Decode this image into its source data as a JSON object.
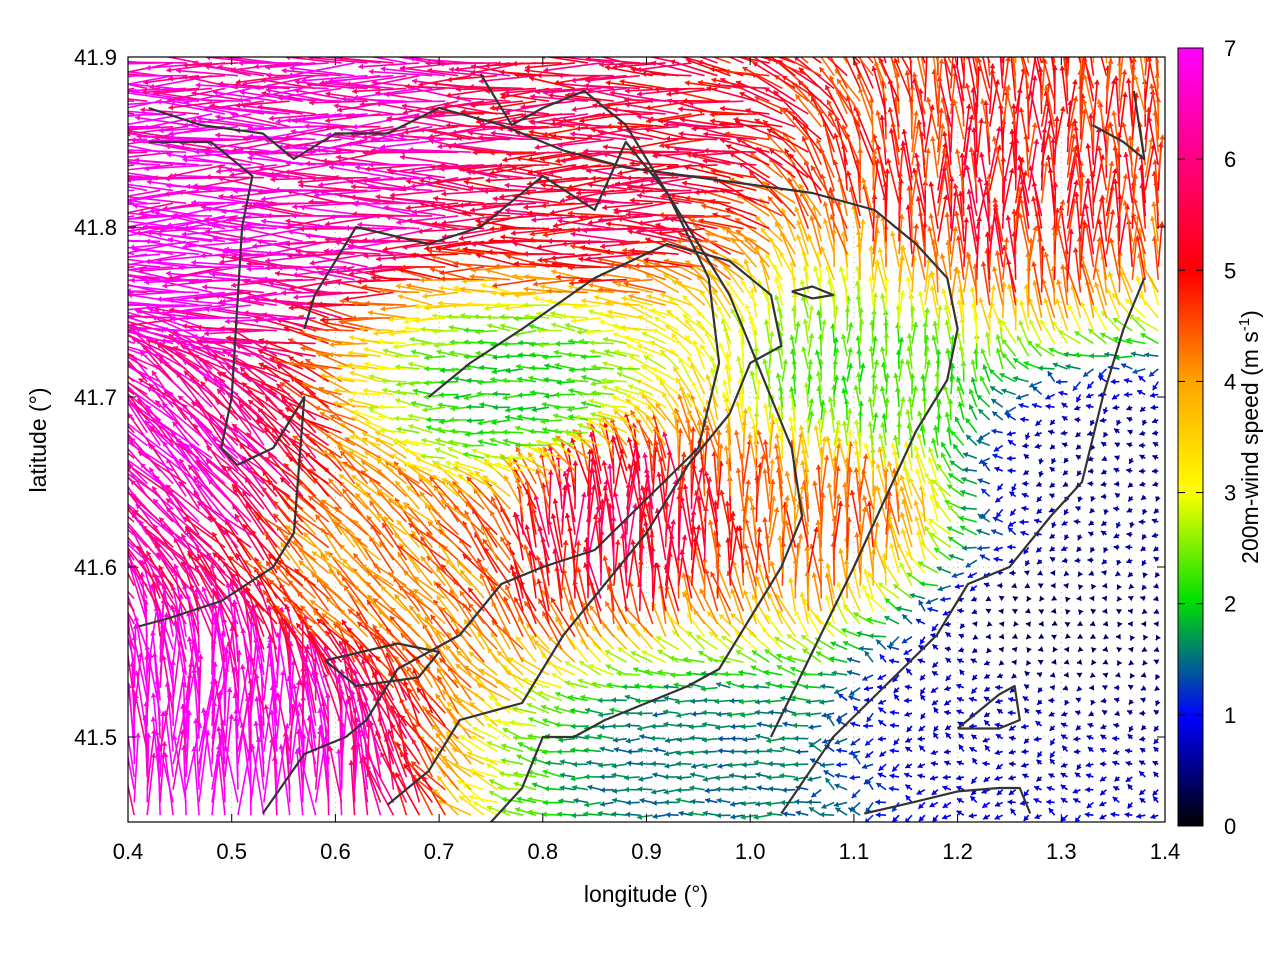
{
  "chart_data": {
    "type": "vector-field",
    "xlabel": "longitude (°)",
    "ylabel": "latitude (°)",
    "xlim": [
      0.4,
      1.4
    ],
    "ylim": [
      41.45,
      41.9
    ],
    "xticks": [
      "0.4",
      "0.5",
      "0.6",
      "0.7",
      "0.8",
      "0.9",
      "1.0",
      "1.1",
      "1.2",
      "1.3",
      "1.4"
    ],
    "yticks": [
      "41.5",
      "41.6",
      "41.7",
      "41.8",
      "41.9"
    ],
    "colorbar": {
      "label_main": "200m-wind speed (m s",
      "label_sup": "-1",
      "label_end": ")",
      "range": [
        0,
        7
      ],
      "ticks": [
        "0",
        "1",
        "2",
        "3",
        "4",
        "5",
        "6",
        "7"
      ],
      "palette": [
        "#000000",
        "#0000ff",
        "#00e000",
        "#ffff00",
        "#ffa500",
        "#ff0000",
        "#ff00ff"
      ]
    },
    "grid": "dotted",
    "legend": "colorbar-right",
    "wind_field": {
      "description_regions": [
        {
          "center": [
            0.47,
            41.8
          ],
          "speed_ms": 7.0,
          "direction": "west"
        },
        {
          "center": [
            0.62,
            41.84
          ],
          "speed_ms": 6.5,
          "direction": "west"
        },
        {
          "center": [
            0.48,
            41.5
          ],
          "speed_ms": 7.0,
          "direction": "north"
        },
        {
          "center": [
            0.45,
            41.65
          ],
          "speed_ms": 6.5,
          "direction": "northwest"
        },
        {
          "center": [
            0.85,
            41.83
          ],
          "speed_ms": 5.5,
          "direction": "west"
        },
        {
          "center": [
            1.25,
            41.8
          ],
          "speed_ms": 5.0,
          "direction": "north"
        },
        {
          "center": [
            0.88,
            41.62
          ],
          "speed_ms": 5.5,
          "direction": "north"
        },
        {
          "center": [
            1.07,
            41.62
          ],
          "speed_ms": 4.5,
          "direction": "north"
        },
        {
          "center": [
            1.28,
            41.56
          ],
          "speed_ms": 0.3,
          "direction": "calm"
        },
        {
          "center": [
            1.33,
            41.66
          ],
          "speed_ms": 0.6,
          "direction": "calm"
        },
        {
          "center": [
            1.22,
            41.52
          ],
          "speed_ms": 0.8,
          "direction": "west"
        },
        {
          "center": [
            0.78,
            41.7
          ],
          "speed_ms": 2.0,
          "direction": "west"
        },
        {
          "center": [
            0.95,
            41.49
          ],
          "speed_ms": 1.5,
          "direction": "west"
        },
        {
          "center": [
            1.12,
            41.7
          ],
          "speed_ms": 2.2,
          "direction": "north"
        },
        {
          "center": [
            0.65,
            41.6
          ],
          "speed_ms": 4.2,
          "direction": "northwest"
        }
      ]
    },
    "contours": [
      {
        "lon": [
          0.42,
          0.47,
          0.53,
          0.56,
          0.6,
          0.65,
          0.7,
          0.76,
          0.82,
          0.88,
          0.94,
          1.0,
          1.06,
          1.12,
          1.16,
          1.19,
          1.2,
          1.19,
          1.16,
          1.13,
          1.1,
          1.06,
          1.02
        ]
      },
      {
        "lon": [
          0.42,
          0.48,
          0.52,
          0.51,
          0.505,
          0.5,
          0.49,
          0.505,
          0.54,
          0.57,
          0.56,
          0.54,
          0.49,
          0.44,
          0.41
        ]
      },
      {
        "lon": [
          0.53,
          0.57,
          0.61,
          0.63,
          0.66,
          0.72,
          0.76,
          0.8,
          0.85,
          0.9,
          0.95,
          0.97,
          0.96,
          0.92,
          0.88,
          0.85,
          0.8,
          0.74,
          0.69,
          0.62,
          0.6,
          0.58,
          0.57
        ]
      },
      {
        "lon": [
          0.75,
          0.78,
          0.8,
          0.83,
          0.86,
          0.9,
          0.94,
          0.97,
          1.0,
          1.03,
          1.05,
          1.04,
          1.02,
          1.0,
          0.98,
          0.95,
          0.92,
          0.88,
          0.84,
          0.8,
          0.77,
          0.74
        ]
      },
      {
        "lon": [
          0.65,
          0.69,
          0.72,
          0.78,
          0.82,
          0.86,
          0.9,
          0.94,
          0.98,
          1.0,
          1.03,
          1.02,
          0.98,
          0.92,
          0.85,
          0.78,
          0.73,
          0.69
        ]
      },
      {
        "lon": [
          1.11,
          1.16,
          1.2,
          1.24,
          1.26,
          1.27
        ]
      },
      {
        "lon": [
          1.2,
          1.24,
          1.26,
          1.255,
          1.24,
          1.2
        ]
      },
      {
        "lon": [
          1.03,
          1.08,
          1.13,
          1.18,
          1.21,
          1.25,
          1.29,
          1.32,
          1.34,
          1.36,
          1.38
        ]
      },
      {
        "lon": [
          1.33,
          1.36,
          1.38,
          1.37
        ]
      },
      {
        "lon": [
          0.59,
          0.66,
          0.7,
          0.68,
          0.62,
          0.59
        ]
      },
      {
        "lon": [
          1.04,
          1.06,
          1.08,
          1.06,
          1.04
        ]
      }
    ]
  }
}
